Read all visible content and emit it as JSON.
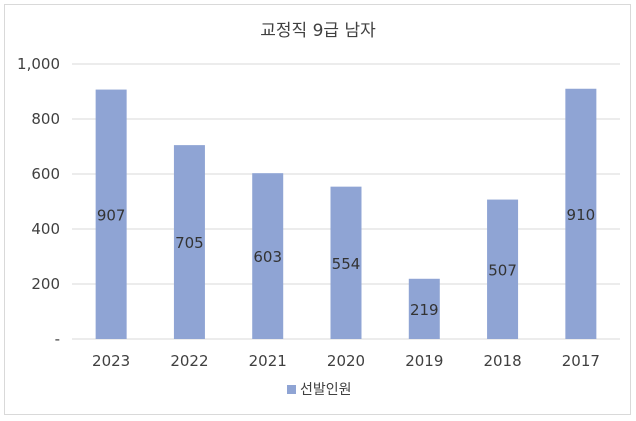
{
  "chart_data": {
    "type": "bar",
    "title": "교정직 9급 남자",
    "categories": [
      "2023",
      "2022",
      "2021",
      "2020",
      "2019",
      "2018",
      "2017"
    ],
    "series": [
      {
        "name": "선발인원",
        "values": [
          907,
          705,
          603,
          554,
          219,
          507,
          910
        ],
        "color": "#8fa4d4"
      }
    ],
    "ylim": [
      0,
      1000
    ],
    "y_ticks": [
      0,
      200,
      400,
      600,
      800,
      1000
    ],
    "y_tick_labels": [
      "-",
      "200",
      "400",
      "600",
      "800",
      "1,000"
    ],
    "grid": true,
    "legend_position": "bottom",
    "data_labels": true
  }
}
